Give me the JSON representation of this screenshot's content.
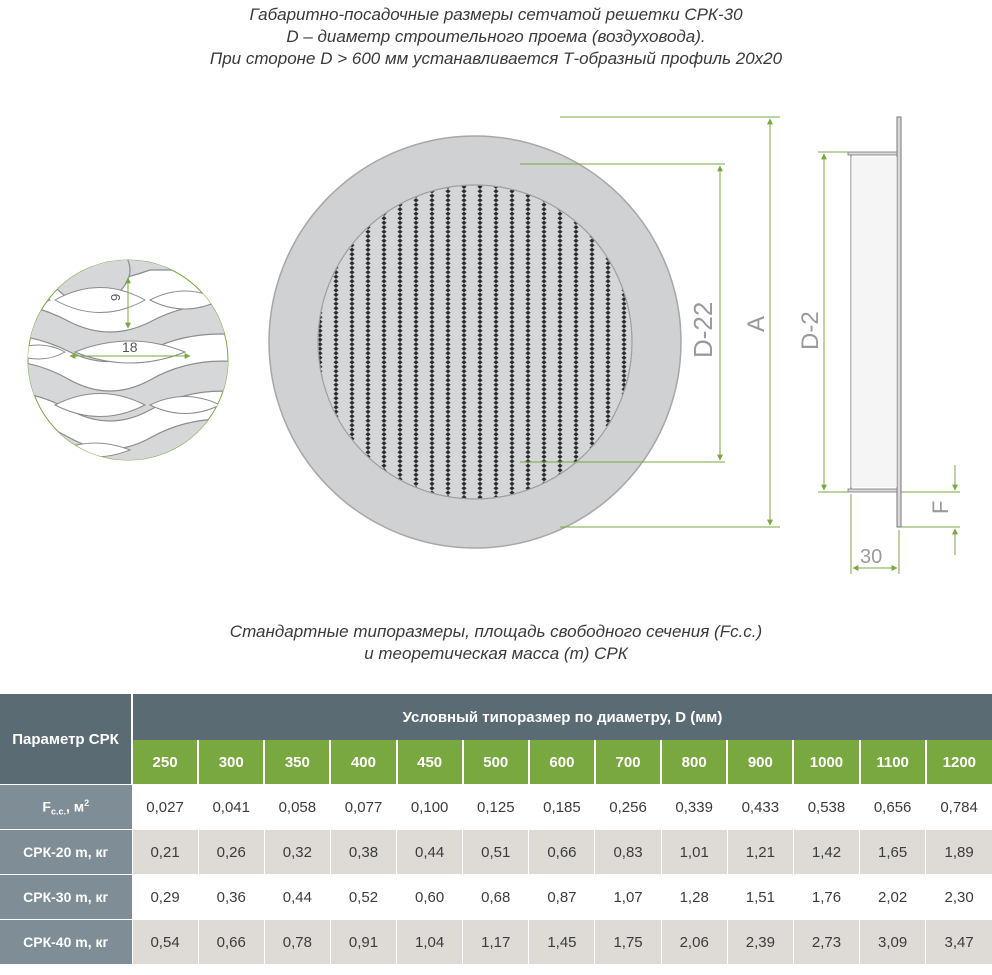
{
  "header": {
    "line1": "Габаритно-посадочные размеры сетчатой решетки СРК-30",
    "line2": "D – диаметр строительного проема (воздуховода).",
    "line3": "При стороне D > 600 мм устанавливается Т-образный профиль 20х20"
  },
  "drawing": {
    "mesh_height": "9",
    "mesh_width": "18",
    "dim_inner": "D-22",
    "dim_outer": "A",
    "dim_side": "D-2",
    "dim_flange": "F",
    "dim_depth": "30"
  },
  "section": {
    "line1": "Стандартные типоразмеры, площадь свободного сечения (Fc.c.)",
    "line2": "и теоретическая масса (m) СРК"
  },
  "table": {
    "param_header": "Параметр СРК",
    "span_header": "Условный типоразмер по диаметру, D (мм)",
    "sizes": [
      "250",
      "300",
      "350",
      "400",
      "450",
      "500",
      "600",
      "700",
      "800",
      "900",
      "1000",
      "1100",
      "1200"
    ],
    "rows": [
      {
        "label_main": "F",
        "label_sub": "с.с.",
        "label_rest": ", м",
        "label_sup": "2",
        "values": [
          "0,027",
          "0,041",
          "0,058",
          "0,077",
          "0,100",
          "0,125",
          "0,185",
          "0,256",
          "0,339",
          "0,433",
          "0,538",
          "0,656",
          "0,784"
        ]
      },
      {
        "label": "СРК-20 m, кг",
        "values": [
          "0,21",
          "0,26",
          "0,32",
          "0,38",
          "0,44",
          "0,51",
          "0,66",
          "0,83",
          "1,01",
          "1,21",
          "1,42",
          "1,65",
          "1,89"
        ]
      },
      {
        "label": "СРК-30 m, кг",
        "values": [
          "0,29",
          "0,36",
          "0,44",
          "0,52",
          "0,60",
          "0,68",
          "0,87",
          "1,07",
          "1,28",
          "1,51",
          "1,76",
          "2,02",
          "2,30"
        ]
      },
      {
        "label": "СРК-40 m, кг",
        "values": [
          "0,54",
          "0,66",
          "0,78",
          "0,91",
          "1,04",
          "1,17",
          "1,45",
          "1,75",
          "2,06",
          "2,39",
          "2,73",
          "3,09",
          "3,47"
        ]
      }
    ]
  },
  "colors": {
    "header_gray": "#5b6b74",
    "size_green": "#7aa840",
    "row_gray": "#7e8d96",
    "row_shade": "#dedad6",
    "dim_line_green": "#7aa840",
    "grill_gray": "#cfd1d3"
  }
}
